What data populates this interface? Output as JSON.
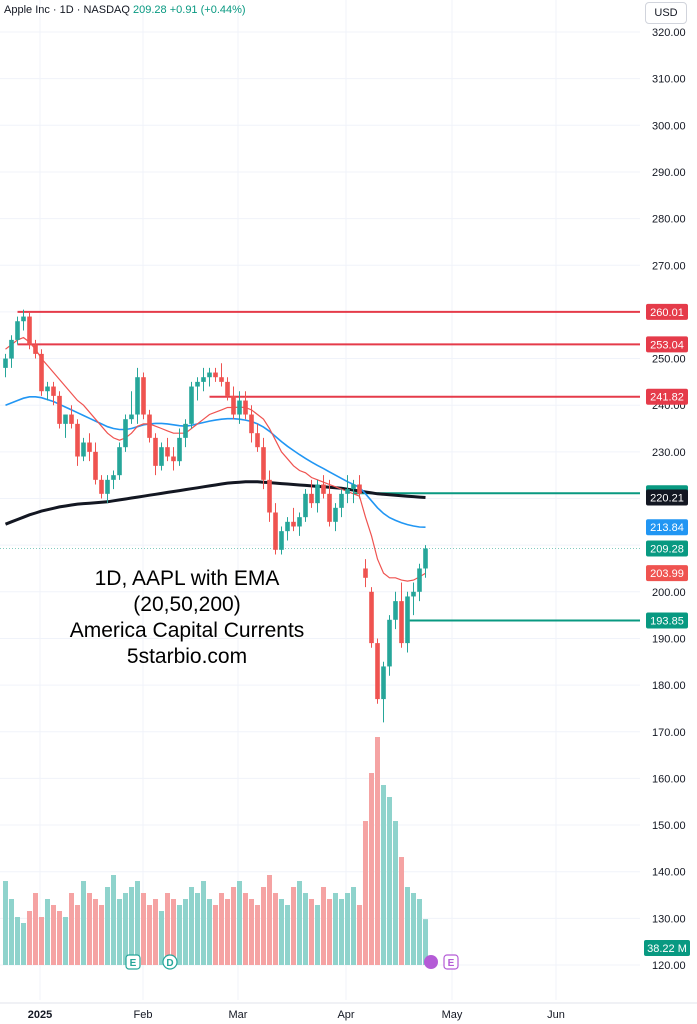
{
  "header": {
    "title": "Apple Inc · 1D · NASDAQ",
    "last": "209.28",
    "change": "+0.91 (+0.44%)",
    "currency": "USD"
  },
  "overlay_text": [
    "1D, AAPL with EMA",
    "(20,50,200)",
    "America Capital Currents",
    "5starbio.com"
  ],
  "event_markers": [
    "E",
    "D",
    "E"
  ],
  "colors": {
    "up": "#26a69a",
    "down": "#ef5350",
    "vol_up": "#8fd3cc",
    "vol_down": "#f5a3a3",
    "ema20": "#ef5350",
    "ema50": "#2196f3",
    "ema200": "#131722",
    "level_red": "#e53b4a",
    "level_green": "#089981"
  },
  "chart_data": {
    "type": "candlestick",
    "ylim": [
      115,
      325
    ],
    "y_ticks": [
      "320.00",
      "310.00",
      "300.00",
      "290.00",
      "280.00",
      "270.00",
      "260.00",
      "250.00",
      "240.00",
      "230.00",
      "220.00",
      "210.00",
      "200.00",
      "190.00",
      "180.00",
      "170.00",
      "160.00",
      "150.00",
      "140.00",
      "130.00",
      "120.00"
    ],
    "x_ticks": [
      "2025",
      "Feb",
      "Mar",
      "Apr",
      "May",
      "Jun"
    ],
    "price_labels": [
      {
        "text": "260.01",
        "value": 260.01,
        "color": "#e53b4a"
      },
      {
        "text": "253.04",
        "value": 253.04,
        "color": "#e53b4a"
      },
      {
        "text": "241.82",
        "value": 241.82,
        "color": "#e53b4a"
      },
      {
        "text": "221.13",
        "value": 221.13,
        "color": "#089981"
      },
      {
        "text": "220.21",
        "value": 220.21,
        "color": "#131722"
      },
      {
        "text": "213.84",
        "value": 213.84,
        "color": "#2196f3"
      },
      {
        "text": "209.28",
        "value": 209.28,
        "color": "#089981"
      },
      {
        "text": "203.99",
        "value": 203.99,
        "color": "#ef5350"
      },
      {
        "text": "193.85",
        "value": 193.85,
        "color": "#089981"
      }
    ],
    "volume_label": "38.22 M",
    "series": {
      "candles": [
        [
          248,
          251,
          246,
          250
        ],
        [
          250,
          255,
          248,
          254
        ],
        [
          254,
          259,
          253,
          258
        ],
        [
          258,
          260.5,
          256,
          259
        ],
        [
          259,
          260,
          252,
          253
        ],
        [
          253,
          254,
          250,
          251
        ],
        [
          251,
          252,
          242,
          243
        ],
        [
          243,
          245,
          241,
          244
        ],
        [
          244,
          245,
          240,
          242
        ],
        [
          242,
          243,
          235,
          236
        ],
        [
          236,
          238,
          233,
          238
        ],
        [
          238,
          240,
          235,
          236
        ],
        [
          236,
          237,
          227,
          229
        ],
        [
          229,
          233,
          228,
          232
        ],
        [
          232,
          234,
          228,
          230
        ],
        [
          230,
          232,
          223,
          224
        ],
        [
          224,
          225,
          220,
          221
        ],
        [
          221,
          225,
          219,
          224
        ],
        [
          224,
          226,
          222,
          225
        ],
        [
          225,
          232,
          224,
          231
        ],
        [
          231,
          238,
          230,
          237
        ],
        [
          237,
          243,
          236,
          238
        ],
        [
          238,
          248,
          236,
          246
        ],
        [
          246,
          247,
          237,
          238
        ],
        [
          238,
          239,
          232,
          233
        ],
        [
          233,
          234,
          225,
          227
        ],
        [
          227,
          232,
          226,
          231
        ],
        [
          231,
          233,
          228,
          229
        ],
        [
          229,
          231,
          226,
          228
        ],
        [
          228,
          235,
          227,
          233
        ],
        [
          233,
          237,
          231,
          236
        ],
        [
          236,
          245,
          235,
          244
        ],
        [
          244,
          246,
          241,
          245
        ],
        [
          245,
          248,
          243,
          246
        ],
        [
          246,
          248,
          244,
          247
        ],
        [
          247,
          248,
          245,
          246
        ],
        [
          246,
          249,
          244,
          245
        ],
        [
          245,
          246,
          241,
          242
        ],
        [
          242,
          244,
          237,
          238
        ],
        [
          238,
          243,
          236,
          241
        ],
        [
          241,
          243,
          237,
          238
        ],
        [
          238,
          240,
          232,
          234
        ],
        [
          234,
          236,
          230,
          231
        ],
        [
          231,
          233,
          222,
          224
        ],
        [
          224,
          226,
          215,
          217
        ],
        [
          217,
          219,
          208,
          209
        ],
        [
          209,
          214,
          208,
          213
        ],
        [
          213,
          216,
          211,
          215
        ],
        [
          215,
          218,
          213,
          214
        ],
        [
          214,
          217,
          212,
          216
        ],
        [
          216,
          222,
          215,
          221
        ],
        [
          221,
          224,
          218,
          219
        ],
        [
          219,
          224,
          217,
          223
        ],
        [
          223,
          225,
          220,
          221
        ],
        [
          221,
          224,
          214,
          215
        ],
        [
          215,
          219,
          213,
          218
        ],
        [
          218,
          222,
          216,
          221
        ],
        [
          221,
          225,
          219,
          222
        ],
        [
          222,
          224,
          219,
          223
        ],
        [
          223,
          225,
          220,
          221
        ],
        [
          205,
          207,
          201,
          203
        ],
        [
          200,
          201,
          188,
          189
        ],
        [
          189,
          190,
          176,
          177
        ],
        [
          177,
          185,
          172,
          184
        ],
        [
          184,
          195,
          182,
          194
        ],
        [
          194,
          200,
          192,
          198
        ],
        [
          198,
          202,
          188,
          189
        ],
        [
          189,
          200,
          187,
          199
        ],
        [
          199,
          202,
          195,
          200
        ],
        [
          200,
          206,
          198,
          205
        ],
        [
          205,
          210,
          203,
          209.28
        ]
      ],
      "candle_x": [
        0,
        1,
        2,
        3,
        4,
        5,
        6,
        7,
        8,
        9,
        10,
        11,
        12,
        13,
        14,
        15,
        16,
        17,
        18,
        19,
        20,
        21,
        22,
        23,
        24,
        25,
        26,
        27,
        28,
        29,
        30,
        31,
        32,
        33,
        34,
        35,
        36,
        37,
        38,
        39,
        40,
        41,
        42,
        43,
        44,
        45,
        46,
        47,
        48,
        49,
        50,
        51,
        52,
        53,
        54,
        55,
        56,
        57,
        58,
        59,
        60,
        61,
        62,
        63,
        64,
        65,
        66,
        67,
        68,
        69,
        70
      ],
      "volume_m": [
        70,
        55,
        40,
        35,
        45,
        60,
        40,
        55,
        50,
        45,
        40,
        60,
        50,
        70,
        60,
        55,
        50,
        65,
        75,
        55,
        60,
        65,
        70,
        60,
        50,
        55,
        45,
        60,
        55,
        50,
        55,
        65,
        60,
        70,
        55,
        50,
        60,
        55,
        65,
        70,
        60,
        55,
        50,
        65,
        75,
        60,
        55,
        50,
        65,
        70,
        60,
        55,
        50,
        65,
        55,
        60,
        55,
        60,
        65,
        50,
        120,
        160,
        190,
        150,
        140,
        120,
        90,
        65,
        60,
        55,
        38.22
      ],
      "ema20": [
        252,
        253,
        254,
        254.5,
        253.5,
        252,
        250,
        248.5,
        247,
        245.5,
        244,
        242.5,
        241,
        240,
        238.5,
        237,
        235.5,
        234,
        233,
        232.5,
        233,
        234,
        235.5,
        236,
        236,
        235.5,
        235,
        234.5,
        234,
        234,
        234,
        235,
        236,
        237,
        238,
        238.5,
        239,
        239.5,
        239.5,
        239.6,
        239.5,
        239,
        238,
        237,
        235,
        232.5,
        230,
        228.5,
        227,
        226,
        225.5,
        224.5,
        224,
        223.5,
        223,
        222.5,
        222,
        221.5,
        221,
        220.5,
        216,
        212,
        207,
        204,
        203,
        203,
        202.5,
        202.3,
        202.5,
        203.2,
        203.99
      ],
      "ema50": [
        240,
        240.5,
        241,
        241.5,
        241.8,
        241.8,
        241.6,
        241.2,
        240.8,
        240.2,
        239.6,
        239,
        238.4,
        237.8,
        237.2,
        236.6,
        236,
        235.4,
        235,
        234.8,
        234.8,
        235,
        235.4,
        235.8,
        236,
        236.1,
        236.1,
        236,
        235.8,
        235.6,
        235.5,
        235.7,
        236,
        236.3,
        236.6,
        236.8,
        237,
        237.1,
        237.1,
        237,
        236.8,
        236.5,
        236,
        235.3,
        234.4,
        233.3,
        232.2,
        231.2,
        230.3,
        229.4,
        228.6,
        227.8,
        227.1,
        226.4,
        225.7,
        225,
        224.3,
        223.6,
        223,
        222.4,
        221,
        219.5,
        218,
        216.8,
        215.9,
        215.3,
        214.8,
        214.4,
        214.1,
        213.9,
        213.84
      ],
      "ema200": [
        214.5,
        215,
        215.5,
        216,
        216.5,
        216.9,
        217.3,
        217.6,
        217.9,
        218.2,
        218.4,
        218.6,
        218.8,
        218.9,
        219,
        219.1,
        219.2,
        219.3,
        219.5,
        219.7,
        219.9,
        220.1,
        220.3,
        220.5,
        220.7,
        220.9,
        221.1,
        221.3,
        221.5,
        221.7,
        221.9,
        222.1,
        222.3,
        222.5,
        222.7,
        222.9,
        223.1,
        223.3,
        223.4,
        223.5,
        223.6,
        223.6,
        223.6,
        223.5,
        223.4,
        223.3,
        223.2,
        223.1,
        223,
        222.9,
        222.8,
        222.7,
        222.6,
        222.5,
        222.4,
        222.3,
        222.2,
        222,
        221.8,
        221.6,
        221.4,
        221.2,
        221,
        220.9,
        220.8,
        220.7,
        220.6,
        220.5,
        220.4,
        220.3,
        220.21
      ],
      "levels": [
        {
          "value": 260.01,
          "from_index": 1,
          "color": "#e53b4a"
        },
        {
          "value": 253.04,
          "from_index": 1,
          "color": "#e53b4a"
        },
        {
          "value": 241.82,
          "from_index": 33,
          "color": "#e53b4a"
        },
        {
          "value": 221.13,
          "from_index": 57,
          "color": "#089981"
        },
        {
          "value": 193.85,
          "from_index": 66,
          "color": "#089981"
        }
      ]
    }
  }
}
